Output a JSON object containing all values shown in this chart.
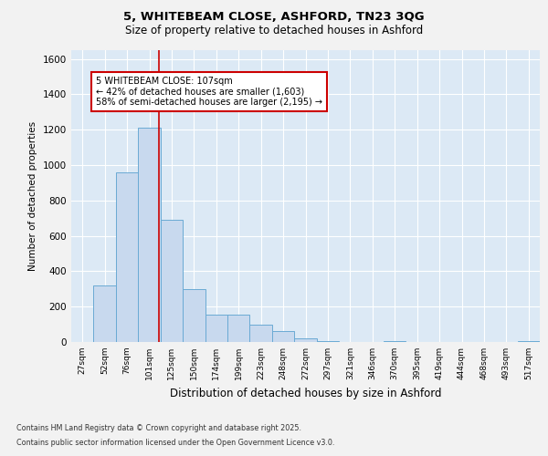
{
  "title_line1": "5, WHITEBEAM CLOSE, ASHFORD, TN23 3QG",
  "title_line2": "Size of property relative to detached houses in Ashford",
  "xlabel": "Distribution of detached houses by size in Ashford",
  "ylabel": "Number of detached properties",
  "footer_line1": "Contains HM Land Registry data © Crown copyright and database right 2025.",
  "footer_line2": "Contains public sector information licensed under the Open Government Licence v3.0.",
  "bin_labels": [
    "27sqm",
    "52sqm",
    "76sqm",
    "101sqm",
    "125sqm",
    "150sqm",
    "174sqm",
    "199sqm",
    "223sqm",
    "248sqm",
    "272sqm",
    "297sqm",
    "321sqm",
    "346sqm",
    "370sqm",
    "395sqm",
    "419sqm",
    "444sqm",
    "468sqm",
    "493sqm",
    "517sqm"
  ],
  "bar_heights": [
    0,
    320,
    960,
    1210,
    690,
    300,
    155,
    155,
    100,
    60,
    20,
    5,
    0,
    0,
    5,
    0,
    0,
    0,
    0,
    0,
    5
  ],
  "bar_color": "#c8d9ee",
  "bar_edge_color": "#6aaad4",
  "background_color": "#dce9f5",
  "grid_color": "#ffffff",
  "vline_color": "#cc0000",
  "vline_pos": 3.45,
  "ylim": [
    0,
    1650
  ],
  "yticks": [
    0,
    200,
    400,
    600,
    800,
    1000,
    1200,
    1400,
    1600
  ],
  "annotation_text": "5 WHITEBEAM CLOSE: 107sqm\n← 42% of detached houses are smaller (1,603)\n58% of semi-detached houses are larger (2,195) →",
  "fig_bg_color": "#f2f2f2"
}
